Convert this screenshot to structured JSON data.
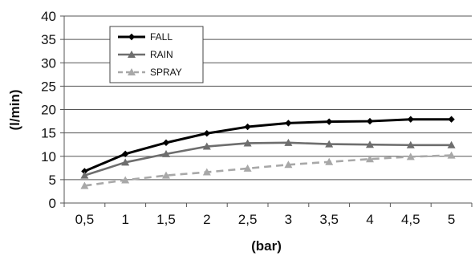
{
  "chart_data": {
    "type": "line",
    "xlabel": "(bar)",
    "ylabel": "(l/min)",
    "categories": [
      "0,5",
      "1",
      "1,5",
      "2",
      "2,5",
      "3",
      "3,5",
      "4",
      "4,5",
      "5"
    ],
    "x": [
      0.5,
      1,
      1.5,
      2,
      2.5,
      3,
      3.5,
      4,
      4.5,
      5
    ],
    "ylim": [
      0,
      40
    ],
    "yticks": [
      0,
      5,
      10,
      15,
      20,
      25,
      30,
      35,
      40
    ],
    "grid": "horizontal",
    "legend_position": "top-left",
    "series": [
      {
        "name": "FALL",
        "values": [
          6.8,
          10.5,
          12.9,
          14.9,
          16.3,
          17.1,
          17.4,
          17.5,
          17.9,
          17.9
        ],
        "color": "#000000",
        "marker": "diamond",
        "dash": "solid"
      },
      {
        "name": "RAIN",
        "values": [
          5.9,
          8.7,
          10.5,
          12.1,
          12.8,
          12.9,
          12.6,
          12.5,
          12.4,
          12.4
        ],
        "color": "#6e6e6e",
        "marker": "triangle",
        "dash": "solid"
      },
      {
        "name": "SPRAY",
        "values": [
          3.7,
          4.9,
          5.9,
          6.6,
          7.4,
          8.2,
          8.8,
          9.4,
          9.9,
          10.2
        ],
        "color": "#a8a8a8",
        "marker": "triangle",
        "dash": "dashed"
      }
    ]
  }
}
